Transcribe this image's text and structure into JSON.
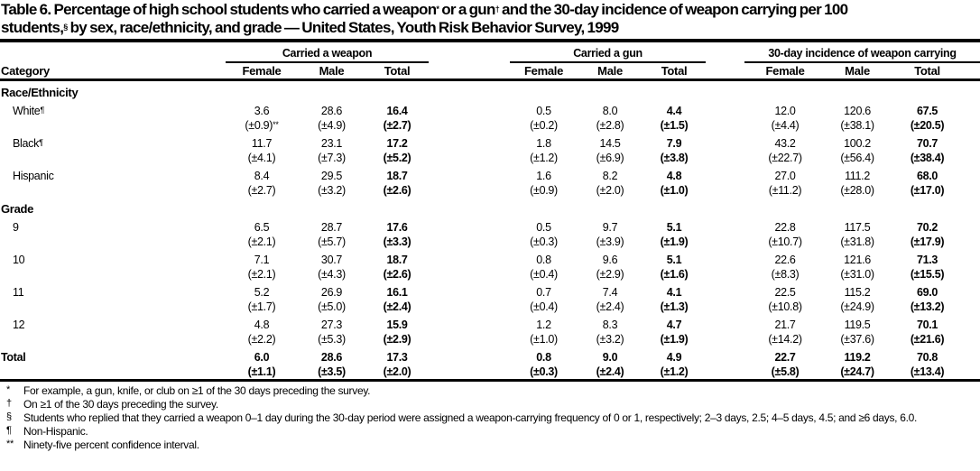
{
  "colors": {
    "text": "#000000",
    "background": "#ffffff",
    "rule": "#000000"
  },
  "title": {
    "line1_pre": "Table 6. Percentage of high school students who carried a weapon",
    "sup1": "*",
    "line1_mid": " or a gun",
    "sup2": "†",
    "line1_post": " and the 30-day incidence of weapon carrying per 100",
    "line2_pre": "students,",
    "sup3": "§",
    "line2_post": " by sex, race/ethnicity, and grade — United States, Youth Risk Behavior Survey, 1999"
  },
  "table": {
    "category_header": "Category",
    "groups": [
      {
        "label": "Carried a weapon"
      },
      {
        "label": "Carried a gun"
      },
      {
        "label": "30-day incidence of weapon carrying"
      }
    ],
    "sub_headers": [
      "Female",
      "Male",
      "Total"
    ],
    "sections": [
      {
        "header": "Race/Ethnicity",
        "rows": [
          {
            "label": "White",
            "label_sup": "¶",
            "values": [
              "3.6",
              "28.6",
              "16.4",
              "0.5",
              "8.0",
              "4.4",
              "12.0",
              "120.6",
              "67.5"
            ],
            "ci": [
              "(±0.9)**",
              "(±4.9)",
              "(±2.7)",
              "(±0.2)",
              "(±2.8)",
              "(±1.5)",
              "(±4.4)",
              "(±38.1)",
              "(±20.5)"
            ]
          },
          {
            "label": "Black",
            "label_sup": "¶",
            "values": [
              "11.7",
              "23.1",
              "17.2",
              "1.8",
              "14.5",
              "7.9",
              "43.2",
              "100.2",
              "70.7"
            ],
            "ci": [
              "(±4.1)",
              "(±7.3)",
              "(±5.2)",
              "(±1.2)",
              "(±6.9)",
              "(±3.8)",
              "(±22.7)",
              "(±56.4)",
              "(±38.4)"
            ]
          },
          {
            "label": "Hispanic",
            "values": [
              "8.4",
              "29.5",
              "18.7",
              "1.6",
              "8.2",
              "4.8",
              "27.0",
              "111.2",
              "68.0"
            ],
            "ci": [
              "(±2.7)",
              "(±3.2)",
              "(±2.6)",
              "(±0.9)",
              "(±2.0)",
              "(±1.0)",
              "(±11.2)",
              "(±28.0)",
              "(±17.0)"
            ]
          }
        ]
      },
      {
        "header": "Grade",
        "rows": [
          {
            "label": "9",
            "values": [
              "6.5",
              "28.7",
              "17.6",
              "0.5",
              "9.7",
              "5.1",
              "22.8",
              "117.5",
              "70.2"
            ],
            "ci": [
              "(±2.1)",
              "(±5.7)",
              "(±3.3)",
              "(±0.3)",
              "(±3.9)",
              "(±1.9)",
              "(±10.7)",
              "(±31.8)",
              "(±17.9)"
            ]
          },
          {
            "label": "10",
            "values": [
              "7.1",
              "30.7",
              "18.7",
              "0.8",
              "9.6",
              "5.1",
              "22.6",
              "121.6",
              "71.3"
            ],
            "ci": [
              "(±2.1)",
              "(±4.3)",
              "(±2.6)",
              "(±0.4)",
              "(±2.9)",
              "(±1.6)",
              "(±8.3)",
              "(±31.0)",
              "(±15.5)"
            ]
          },
          {
            "label": "11",
            "values": [
              "5.2",
              "26.9",
              "16.1",
              "0.7",
              "7.4",
              "4.1",
              "22.5",
              "115.2",
              "69.0"
            ],
            "ci": [
              "(±1.7)",
              "(±5.0)",
              "(±2.4)",
              "(±0.4)",
              "(±2.4)",
              "(±1.3)",
              "(±10.8)",
              "(±24.9)",
              "(±13.2)"
            ]
          },
          {
            "label": "12",
            "values": [
              "4.8",
              "27.3",
              "15.9",
              "1.2",
              "8.3",
              "4.7",
              "21.7",
              "119.5",
              "70.1"
            ],
            "ci": [
              "(±2.2)",
              "(±5.3)",
              "(±2.9)",
              "(±1.0)",
              "(±3.2)",
              "(±1.9)",
              "(±14.2)",
              "(±37.6)",
              "(±21.6)"
            ]
          }
        ]
      },
      {
        "header": "",
        "rows": [
          {
            "label": "Total",
            "bold": true,
            "values": [
              "6.0",
              "28.6",
              "17.3",
              "0.8",
              "9.0",
              "4.9",
              "22.7",
              "119.2",
              "70.8"
            ],
            "ci": [
              "(±1.1)",
              "(±3.5)",
              "(±2.0)",
              "(±0.3)",
              "(±2.4)",
              "(±1.2)",
              "(±5.8)",
              "(±24.7)",
              "(±13.4)"
            ]
          }
        ]
      }
    ]
  },
  "footnotes": [
    {
      "symbol": "*",
      "text": "For example, a gun, knife, or club on ≥1 of the 30 days preceding the survey."
    },
    {
      "symbol": "†",
      "text": "On ≥1 of the 30 days preceding the survey."
    },
    {
      "symbol": "§",
      "text": "Students who replied that they carried a weapon 0–1 day during the 30-day period were assigned a weapon-carrying frequency of 0 or 1, respectively; 2–3 days, 2.5; 4–5 days, 4.5; and ≥6 days, 6.0."
    },
    {
      "symbol": "¶",
      "text": "Non-Hispanic."
    },
    {
      "symbol": "**",
      "text": "Ninety-five percent confidence interval."
    }
  ]
}
